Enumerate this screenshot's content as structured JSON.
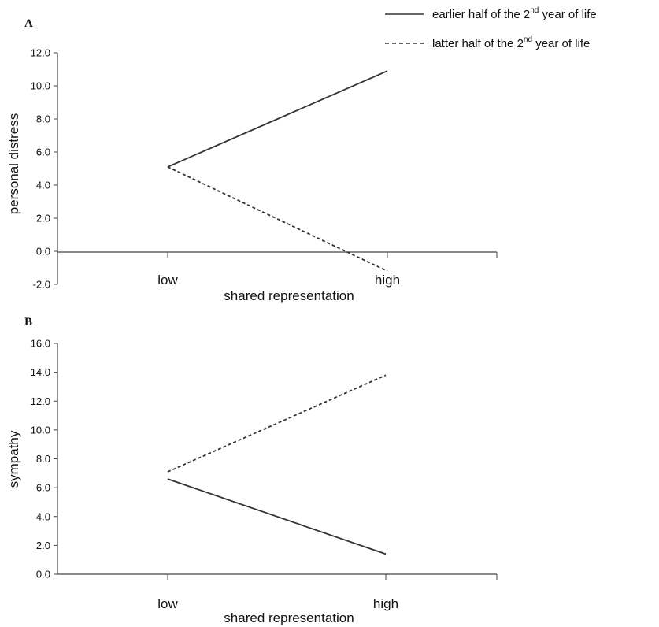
{
  "legend": [
    {
      "style": "solid",
      "prefix": "earlier half of the 2",
      "sup": "nd",
      "suffix": "  year of life"
    },
    {
      "style": "dashed",
      "prefix": "latter half of the 2",
      "sup": "nd",
      "suffix": " year of life"
    }
  ],
  "chart_data": [
    {
      "type": "line",
      "panel_label": "A",
      "categories": [
        "low",
        "high"
      ],
      "xlabel": "shared representation",
      "ylabel": "personal distress",
      "ylim": [
        -2.0,
        12.0
      ],
      "yticks": [
        "12.0",
        "10.0",
        "8.0",
        "6.0",
        "4.0",
        "2.0",
        "0.0",
        "-2.0"
      ],
      "grid": false,
      "legend_position": "top-right",
      "series": [
        {
          "legend_index": 0,
          "style": "solid",
          "color": "#333333",
          "values": [
            5.1,
            10.9
          ]
        },
        {
          "legend_index": 1,
          "style": "dashed",
          "color": "#333333",
          "values": [
            5.1,
            -1.2
          ]
        }
      ]
    },
    {
      "type": "line",
      "panel_label": "B",
      "categories": [
        "low",
        "high"
      ],
      "xlabel": "shared representation",
      "ylabel": "sympathy",
      "ylim": [
        0.0,
        16.0
      ],
      "yticks": [
        "16.0",
        "14.0",
        "12.0",
        "10.0",
        "8.0",
        "6.0",
        "4.0",
        "2.0",
        "0.0"
      ],
      "grid": false,
      "series": [
        {
          "legend_index": 0,
          "style": "solid",
          "color": "#333333",
          "values": [
            6.6,
            1.4
          ]
        },
        {
          "legend_index": 1,
          "style": "dashed",
          "color": "#333333",
          "values": [
            7.1,
            13.8
          ]
        }
      ]
    }
  ]
}
